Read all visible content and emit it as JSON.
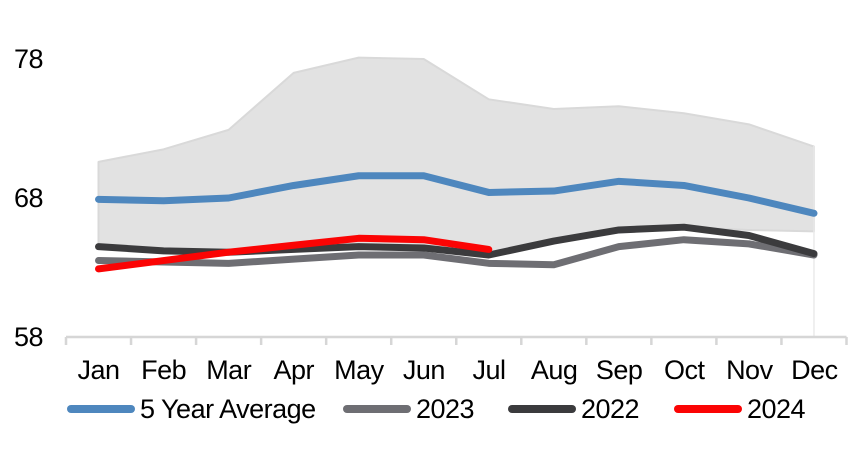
{
  "chart_data": {
    "type": "line",
    "title": "",
    "categories": [
      "Jan",
      "Feb",
      "Mar",
      "Apr",
      "May",
      "Jun",
      "Jul",
      "Aug",
      "Sep",
      "Oct",
      "Nov",
      "Dec"
    ],
    "y_axis": {
      "ticks": [
        78,
        68,
        58
      ],
      "min": 58,
      "max": 78
    },
    "grid": "off",
    "legend_position": "bottom",
    "series": [
      {
        "name": "5 Year Average",
        "color": "#4E87BE",
        "values": [
          67.9,
          67.8,
          68.0,
          68.9,
          69.6,
          69.6,
          68.4,
          68.5,
          69.2,
          68.9,
          68.0,
          66.9
        ]
      },
      {
        "name": "2023",
        "color": "#6E6E73",
        "values": [
          63.5,
          63.4,
          63.3,
          63.6,
          63.9,
          63.9,
          63.3,
          63.2,
          64.5,
          65.0,
          64.7,
          63.9
        ]
      },
      {
        "name": "2022",
        "color": "#3B3B3D",
        "values": [
          64.5,
          64.2,
          64.1,
          64.3,
          64.5,
          64.4,
          63.9,
          64.9,
          65.7,
          65.9,
          65.3,
          64.0
        ]
      },
      {
        "name": "2024",
        "color": "#FB0404",
        "values": [
          62.9,
          63.5,
          64.1,
          64.6,
          65.1,
          65.0,
          64.3
        ]
      }
    ],
    "band": {
      "name": "5-year min-max range",
      "color": "#E2E2E2",
      "edge_color": "#D9D9D9",
      "upper": [
        70.6,
        71.5,
        72.9,
        77.0,
        78.1,
        78.0,
        75.1,
        74.4,
        74.6,
        74.1,
        73.3,
        71.7
      ],
      "lower": [
        64.6,
        64.3,
        64.1,
        64.3,
        64.6,
        64.5,
        63.9,
        64.9,
        65.7,
        65.9,
        65.7,
        65.6
      ]
    },
    "axis_color": "#D6D6D6",
    "text_color": "#000000"
  }
}
